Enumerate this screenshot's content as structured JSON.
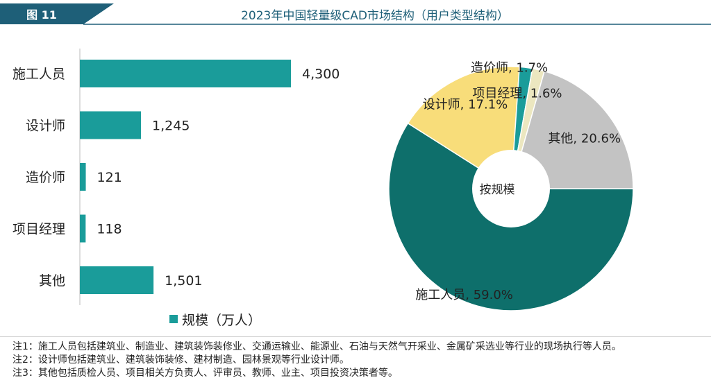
{
  "header": {
    "figure_label": "图 11",
    "title": "2023年中国轻量级CAD市场结构（用户类型结构）"
  },
  "colors": {
    "header_dark": "#1e5f78",
    "bar": "#1a9c9a",
    "slice_construction": "#0e6f6b",
    "slice_designer": "#f8dd7a",
    "slice_cost": "#1a9c9a",
    "slice_pm": "#ece7c0",
    "slice_other": "#c3c3c3"
  },
  "chart_data": [
    {
      "type": "bar",
      "orientation": "horizontal",
      "categories": [
        "施工人员",
        "设计师",
        "造价师",
        "项目经理",
        "其他"
      ],
      "values": [
        4300,
        1245,
        121,
        118,
        1501
      ],
      "value_labels": [
        "4,300",
        "1,245",
        "121",
        "118",
        "1,501"
      ],
      "series": [
        {
          "name": "规模（万人）",
          "values": [
            4300,
            1245,
            121,
            118,
            1501
          ]
        }
      ],
      "xlim": [
        0,
        4300
      ],
      "legend": "bottom"
    },
    {
      "type": "pie",
      "center_label": "按规模",
      "slices": [
        {
          "label": "施工人员, 59.0%",
          "category": "施工人员",
          "value": 59.0,
          "color_key": "slice_construction"
        },
        {
          "label": "设计师, 17.1%",
          "category": "设计师",
          "value": 17.1,
          "color_key": "slice_designer"
        },
        {
          "label": "造价师, 1.7%",
          "category": "造价师",
          "value": 1.7,
          "color_key": "slice_cost"
        },
        {
          "label": "项目经理, 1.6%",
          "category": "项目经理",
          "value": 1.6,
          "color_key": "slice_pm"
        },
        {
          "label": "其他, 20.6%",
          "category": "其他",
          "value": 20.6,
          "color_key": "slice_other"
        }
      ]
    }
  ],
  "notes": [
    "注1：施工人员包括建筑业、制造业、建筑装饰装修业、交通运输业、能源业、石油与天然气开采业、金属矿采选业等行业的现场执行等人员。",
    "注2：设计师包括建筑业、建筑装饰装修、建材制造、园林景观等行业设计师。",
    "注3：其他包括质检人员、项目相关方负责人、评审员、教师、业主、项目投资决策者等。"
  ]
}
